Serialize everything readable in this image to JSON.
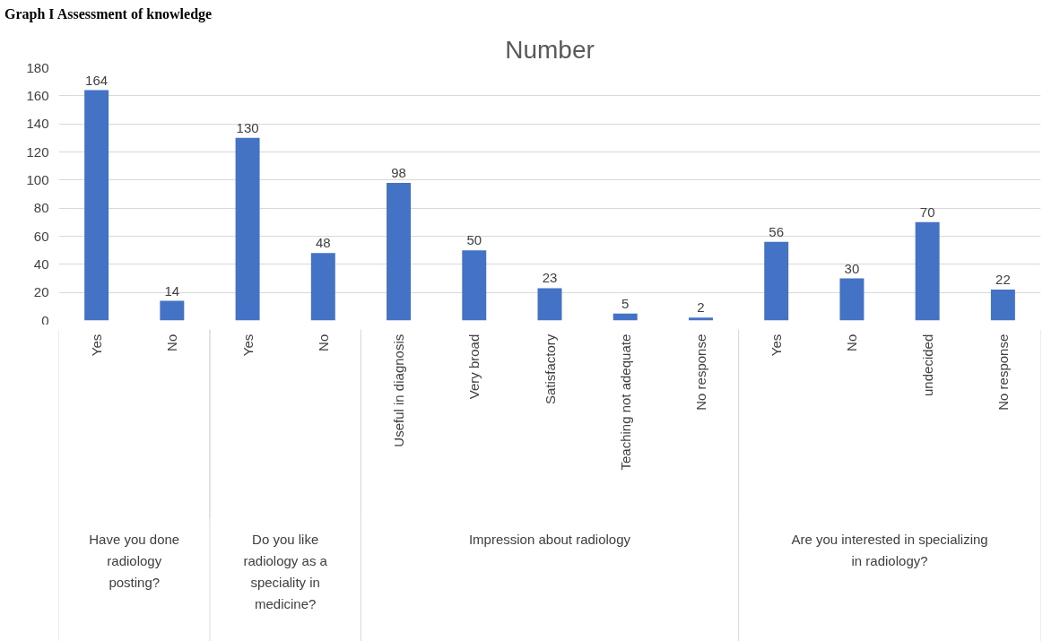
{
  "chart_data": {
    "type": "bar",
    "title": "Number",
    "annotations": [
      "Graph I Assessment of knowledge",
      "Have you done radiology posting?",
      "Do you like radiology as a speciality in medicine?",
      "Impression about radiology",
      "Are you interested in specializing in radiology?"
    ],
    "categories": [
      "Yes",
      "No",
      "Yes",
      "No",
      "Useful in diagnosis",
      "Very broad",
      "Satisfactory",
      "Teaching not adequate",
      "No response",
      "Yes",
      "No",
      "undecided",
      "No response"
    ],
    "values": [
      164,
      14,
      130,
      48,
      98,
      50,
      23,
      5,
      2,
      56,
      30,
      70,
      22
    ],
    "color": "#4472c4",
    "ylim": [
      0,
      180
    ],
    "yticks": [
      0,
      20,
      40,
      60,
      80,
      100,
      120,
      140,
      160,
      180
    ],
    "grid": "y",
    "data_labels": true
  }
}
